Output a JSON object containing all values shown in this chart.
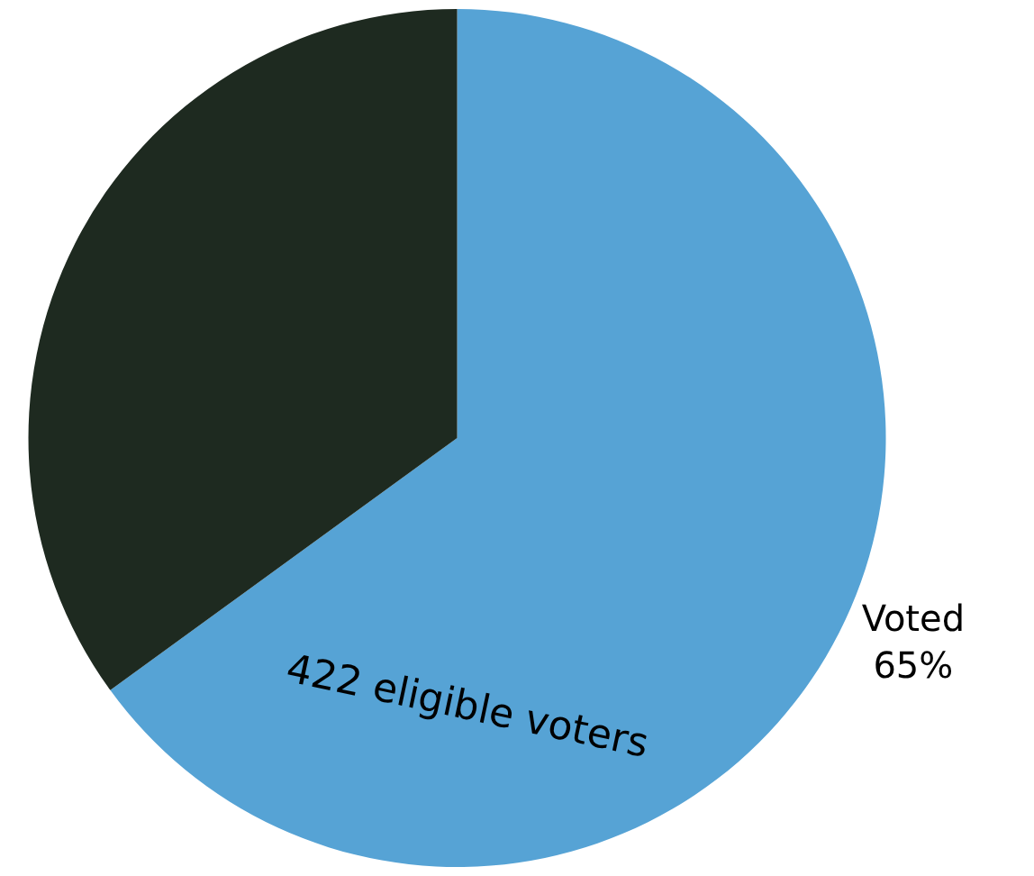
{
  "chart_data": {
    "type": "pie",
    "categories": [
      "Voted",
      null
    ],
    "values": [
      65,
      35
    ],
    "value_labels": [
      "65%",
      null
    ],
    "colors": [
      "#56a3d5",
      "#1e2a20"
    ],
    "annotations": [
      "422 eligible voters"
    ],
    "legend": false
  }
}
